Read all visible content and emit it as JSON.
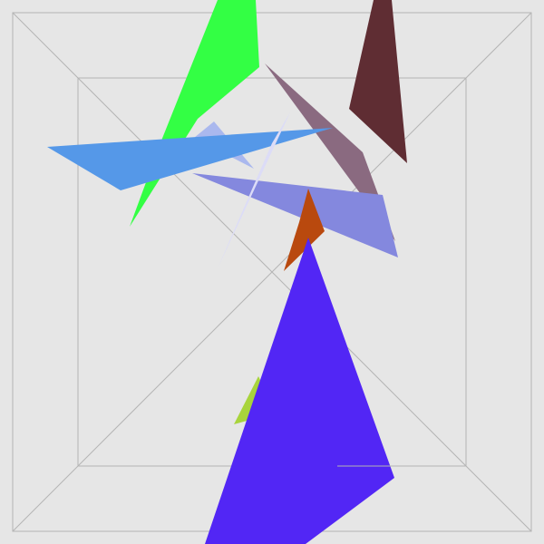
{
  "scene": {
    "background": "#e6e6e6",
    "frame_color": "#b4b4b4",
    "shards": [
      {
        "name": "green-shard",
        "color": "#33ff44"
      },
      {
        "name": "maroon-shard",
        "color": "#5f2d33"
      },
      {
        "name": "mauve-shard",
        "color": "#8a6a80"
      },
      {
        "name": "pale-blue-shard",
        "color": "#aab8ee"
      },
      {
        "name": "sky-blue-shard",
        "color": "#5598e8"
      },
      {
        "name": "periwinkle-shard",
        "color": "#8488de"
      },
      {
        "name": "lavender-sliver",
        "color": "#dcdcf7"
      },
      {
        "name": "orange-shard",
        "color": "#b9490e"
      },
      {
        "name": "lime-shard",
        "color": "#a8d43c"
      },
      {
        "name": "violet-shard",
        "color": "#5226f5"
      }
    ]
  }
}
